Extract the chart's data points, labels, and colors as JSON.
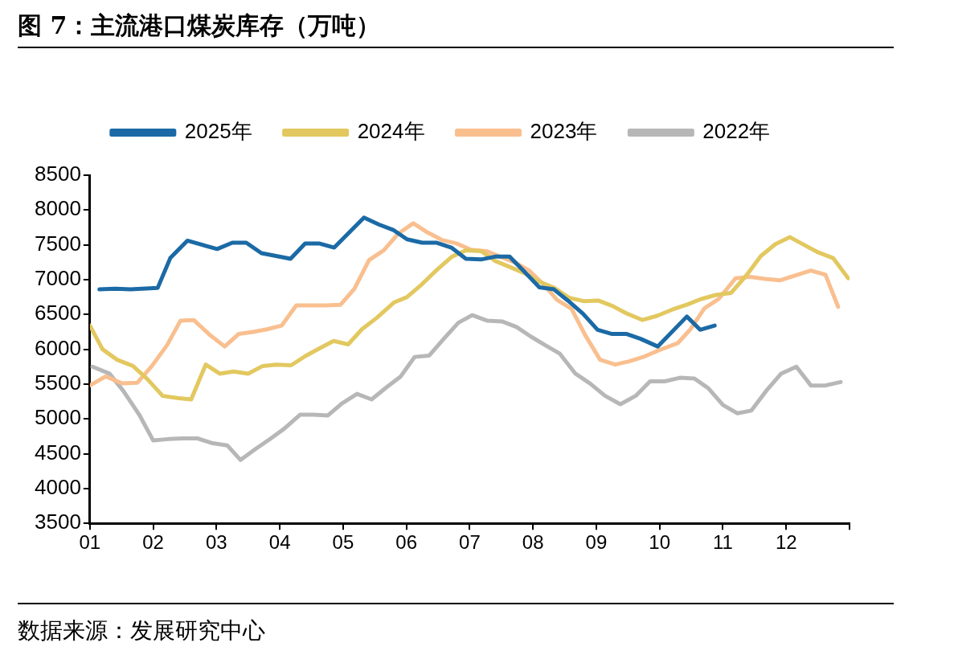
{
  "chart_data": {
    "type": "line",
    "title": "图 7：主流港口煤炭库存（万吨）",
    "annotations": [
      "数据来源：发展研究中心"
    ],
    "xlim": [
      1,
      13
    ],
    "xticks": [
      {
        "value": 1,
        "label": "01"
      },
      {
        "value": 2,
        "label": "02"
      },
      {
        "value": 3,
        "label": "03"
      },
      {
        "value": 4,
        "label": "04"
      },
      {
        "value": 5,
        "label": "05"
      },
      {
        "value": 6,
        "label": "06"
      },
      {
        "value": 7,
        "label": "07"
      },
      {
        "value": 8,
        "label": "08"
      },
      {
        "value": 9,
        "label": "09"
      },
      {
        "value": 10,
        "label": "10"
      },
      {
        "value": 11,
        "label": "11"
      },
      {
        "value": 12,
        "label": "12"
      },
      {
        "value": 13,
        "label": null
      }
    ],
    "ylim": [
      3500,
      8500
    ],
    "yticks": [
      3500,
      4000,
      4500,
      5000,
      5500,
      6000,
      6500,
      7000,
      7500,
      8000,
      8500
    ],
    "grid": false,
    "legend": "top",
    "marker": "none",
    "line_style": "solid",
    "series": [
      {
        "name": "2025年",
        "color": "#1b6aa5",
        "x": [
          1.15,
          1.4,
          1.64,
          2.07,
          2.27,
          2.54,
          3.01,
          3.25,
          3.47,
          3.71,
          4.17,
          4.4,
          4.62,
          4.86,
          5.33,
          5.57,
          5.8,
          6.01,
          6.25,
          6.48,
          6.71,
          6.94,
          7.18,
          7.4,
          7.63,
          7.87,
          8.1,
          8.33,
          8.55,
          8.79,
          9.02,
          9.25,
          9.48,
          9.7,
          9.97,
          10.43,
          10.64,
          10.87
        ],
        "values": [
          6860,
          6870,
          6860,
          6880,
          7310,
          7560,
          7440,
          7530,
          7530,
          7380,
          7300,
          7520,
          7520,
          7460,
          7890,
          7790,
          7710,
          7580,
          7530,
          7530,
          7460,
          7300,
          7290,
          7330,
          7330,
          7110,
          6890,
          6860,
          6700,
          6510,
          6280,
          6220,
          6220,
          6150,
          6040,
          6470,
          6280,
          6340
        ]
      },
      {
        "name": "2024年",
        "color": "#e2c85f",
        "x": [
          1.0,
          1.2,
          1.43,
          1.68,
          1.91,
          2.15,
          2.38,
          2.6,
          2.83,
          3.05,
          3.27,
          3.5,
          3.73,
          3.94,
          4.18,
          4.4,
          4.62,
          4.85,
          5.08,
          5.3,
          5.53,
          5.8,
          6.01,
          6.24,
          6.48,
          6.72,
          6.94,
          7.18,
          7.4,
          7.64,
          7.87,
          8.1,
          8.34,
          8.57,
          8.81,
          9.03,
          9.26,
          9.49,
          9.73,
          9.96,
          10.2,
          10.43,
          10.65,
          10.89,
          11.13,
          11.37,
          11.6,
          11.83,
          12.06,
          12.28,
          12.51,
          12.74,
          12.98
        ],
        "values": [
          6340,
          6000,
          5850,
          5760,
          5570,
          5330,
          5300,
          5280,
          5780,
          5650,
          5680,
          5650,
          5760,
          5780,
          5770,
          5900,
          6010,
          6120,
          6070,
          6290,
          6450,
          6670,
          6750,
          6930,
          7140,
          7330,
          7420,
          7410,
          7270,
          7180,
          7090,
          6970,
          6880,
          6740,
          6690,
          6700,
          6620,
          6510,
          6420,
          6480,
          6570,
          6640,
          6720,
          6780,
          6810,
          7060,
          7340,
          7510,
          7610,
          7500,
          7390,
          7310,
          7020
        ]
      },
      {
        "name": "2023年",
        "color": "#f9bf8f",
        "x": [
          1.0,
          1.25,
          1.51,
          1.75,
          1.98,
          2.22,
          2.43,
          2.64,
          2.89,
          3.13,
          3.35,
          3.58,
          3.81,
          4.03,
          4.26,
          4.49,
          4.73,
          4.96,
          5.18,
          5.41,
          5.64,
          5.87,
          6.11,
          6.33,
          6.56,
          6.79,
          7.02,
          7.26,
          7.48,
          7.71,
          7.94,
          8.17,
          8.38,
          8.61,
          8.82,
          9.06,
          9.3,
          9.53,
          9.77,
          10.0,
          10.29,
          10.49,
          10.71,
          10.93,
          11.2,
          11.43,
          11.66,
          11.9,
          12.14,
          12.39,
          12.62,
          12.82
        ],
        "values": [
          5480,
          5610,
          5510,
          5520,
          5760,
          6060,
          6410,
          6420,
          6210,
          6040,
          6220,
          6250,
          6290,
          6340,
          6630,
          6630,
          6630,
          6640,
          6870,
          7280,
          7420,
          7660,
          7810,
          7680,
          7570,
          7520,
          7430,
          7410,
          7330,
          7250,
          7130,
          6930,
          6710,
          6580,
          6210,
          5850,
          5780,
          5830,
          5900,
          5990,
          6090,
          6290,
          6590,
          6720,
          7020,
          7040,
          7010,
          6990,
          7060,
          7130,
          7070,
          6610
        ]
      },
      {
        "name": "2022年",
        "color": "#b7b7b7",
        "x": [
          1.04,
          1.31,
          1.53,
          1.78,
          2.0,
          2.24,
          2.47,
          2.7,
          2.94,
          3.17,
          3.38,
          3.62,
          3.86,
          4.07,
          4.32,
          4.53,
          4.76,
          4.98,
          5.22,
          5.45,
          5.68,
          5.91,
          6.13,
          6.36,
          6.59,
          6.82,
          7.04,
          7.28,
          7.51,
          7.74,
          7.97,
          8.19,
          8.42,
          8.67,
          8.9,
          9.14,
          9.38,
          9.62,
          9.85,
          10.08,
          10.32,
          10.55,
          10.77,
          11.0,
          11.23,
          11.45,
          11.7,
          11.92,
          12.16,
          12.39,
          12.62,
          12.86
        ],
        "values": [
          5750,
          5650,
          5400,
          5060,
          4690,
          4710,
          4720,
          4720,
          4650,
          4620,
          4410,
          4570,
          4720,
          4860,
          5060,
          5060,
          5050,
          5220,
          5360,
          5280,
          5450,
          5610,
          5890,
          5910,
          6150,
          6380,
          6490,
          6410,
          6400,
          6320,
          6180,
          6060,
          5940,
          5650,
          5510,
          5330,
          5210,
          5330,
          5540,
          5540,
          5590,
          5580,
          5440,
          5200,
          5080,
          5120,
          5420,
          5650,
          5750,
          5480,
          5480,
          5530
        ]
      }
    ]
  }
}
